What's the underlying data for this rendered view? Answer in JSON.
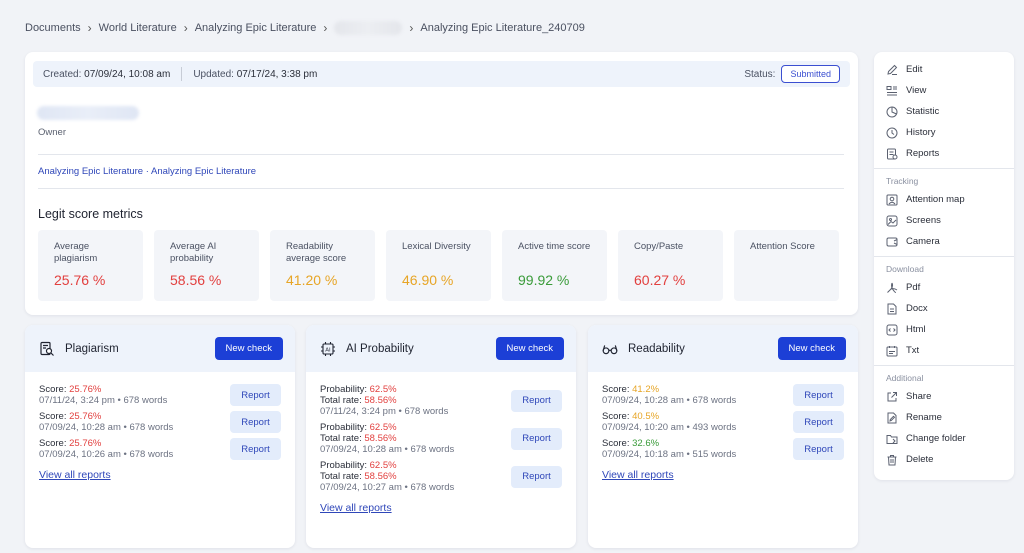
{
  "breadcrumb": [
    "Documents",
    "World Literature",
    "Analyzing Epic Literature",
    "Analyzing Epic Literature_240709"
  ],
  "meta": {
    "created_label": "Created:",
    "created_value": "07/09/24, 10:08 am",
    "updated_label": "Updated:",
    "updated_value": "07/17/24, 3:38 pm",
    "status_label": "Status:",
    "status_value": "Submitted"
  },
  "owner_label": "Owner",
  "doc_links": "Analyzing Epic Literature · Analyzing Epic Literature",
  "metrics_title": "Legit score metrics",
  "metrics": [
    {
      "label": "Average plagiarism",
      "value": "25.76 %",
      "color": "#e2403f"
    },
    {
      "label": "Average AI probability",
      "value": "58.56 %",
      "color": "#e2403f"
    },
    {
      "label": "Readability average score",
      "value": "41.20 %",
      "color": "#e7a526"
    },
    {
      "label": "Lexical Diversity",
      "value": "46.90 %",
      "color": "#e7a526"
    },
    {
      "label": "Active time score",
      "value": "99.92 %",
      "color": "#3a9b3a"
    },
    {
      "label": "Copy/Paste",
      "value": "60.27 %",
      "color": "#e2403f"
    },
    {
      "label": "Attention Score",
      "value": ""
    }
  ],
  "tools": {
    "new_check": "New check",
    "report": "Report",
    "view_all": "View all reports",
    "plagiarism": {
      "title": "Plagiarism",
      "entries": [
        {
          "k": "Score:",
          "v": "25.76%",
          "sub": "07/11/24, 3:24 pm • 678 words"
        },
        {
          "k": "Score:",
          "v": "25.76%",
          "sub": "07/09/24, 10:28 am • 678 words"
        },
        {
          "k": "Score:",
          "v": "25.76%",
          "sub": "07/09/24, 10:26 am • 678 words"
        }
      ]
    },
    "ai": {
      "title": "AI Probability",
      "entries": [
        {
          "k": "Probability:",
          "v": "62.5%",
          "k2": "Total rate:",
          "v2": "58.56%",
          "sub": "07/11/24, 3:24 pm • 678 words"
        },
        {
          "k": "Probability:",
          "v": "62.5%",
          "k2": "Total rate:",
          "v2": "58.56%",
          "sub": "07/09/24, 10:28 am • 678 words"
        },
        {
          "k": "Probability:",
          "v": "62.5%",
          "k2": "Total rate:",
          "v2": "58.56%",
          "sub": "07/09/24, 10:27 am • 678 words"
        }
      ]
    },
    "readability": {
      "title": "Readability",
      "entries": [
        {
          "k": "Score:",
          "v": "41.2%",
          "sub": "07/09/24, 10:28 am • 678 words",
          "color": "#e7a526"
        },
        {
          "k": "Score:",
          "v": "40.5%",
          "sub": "07/09/24, 10:20 am • 493 words",
          "color": "#e7a526"
        },
        {
          "k": "Score:",
          "v": "32.6%",
          "sub": "07/09/24, 10:18 am • 515 words",
          "color": "#3a9b3a"
        }
      ]
    }
  },
  "menu": {
    "main": [
      "Edit",
      "View",
      "Statistic",
      "History",
      "Reports"
    ],
    "tracking_label": "Tracking",
    "tracking": [
      "Attention map",
      "Screens",
      "Camera"
    ],
    "download_label": "Download",
    "download": [
      "Pdf",
      "Docx",
      "Html",
      "Txt"
    ],
    "additional_label": "Additional",
    "additional": [
      "Share",
      "Rename",
      "Change folder",
      "Delete"
    ]
  }
}
